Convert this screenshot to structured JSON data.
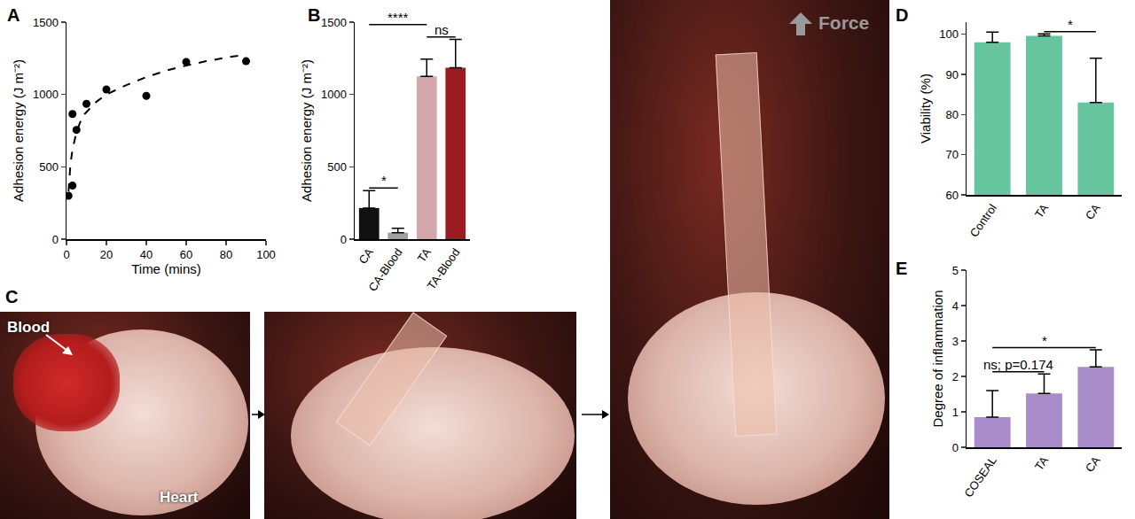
{
  "chart_data": [
    {
      "type": "scatter",
      "title": "A",
      "xlabel": "Time (mins)",
      "ylabel": "Adhesion energy (J m⁻²)",
      "xlim": [
        0,
        100
      ],
      "xticks": [
        0,
        20,
        40,
        60,
        80,
        100
      ],
      "ylim": [
        0,
        1500
      ],
      "yticks": [
        0,
        500,
        1000,
        1500
      ],
      "grid": false,
      "series": [
        {
          "type": "scatter",
          "marker": "circle",
          "color": "#000000",
          "x": [
            1,
            3,
            3,
            5,
            10,
            20,
            40,
            60,
            90
          ],
          "values": [
            300,
            370,
            865,
            755,
            935,
            1035,
            990,
            1225,
            1230
          ]
        },
        {
          "type": "line",
          "line_style": "dash",
          "color": "#000000",
          "x": [
            1,
            2,
            3,
            5,
            8,
            10,
            15,
            20,
            30,
            40,
            50,
            60,
            70,
            80,
            90
          ],
          "values": [
            330,
            520,
            620,
            740,
            850,
            880,
            950,
            1000,
            1065,
            1120,
            1165,
            1200,
            1230,
            1255,
            1275
          ]
        }
      ]
    },
    {
      "type": "bar",
      "title": "B",
      "ylabel": "Adhesion energy (J m⁻²)",
      "categories": [
        "CA",
        "CA-Blood",
        "TA",
        "TA-Blood"
      ],
      "values": [
        215,
        45,
        1125,
        1185
      ],
      "errors": [
        120,
        30,
        120,
        195
      ],
      "colors": [
        "#111111",
        "#a0a0a0",
        "#d4a7ac",
        "#9b1b22"
      ],
      "ylim": [
        0,
        1500
      ],
      "yticks": [
        0,
        500,
        1000,
        1500
      ],
      "grid": false,
      "significance": [
        {
          "from": "CA",
          "to": "CA-Blood",
          "text": "*"
        },
        {
          "from": "TA",
          "to": "TA-Blood",
          "text": "ns"
        },
        {
          "from": "CA",
          "to": "TA",
          "text": "****"
        }
      ]
    },
    {
      "type": "bar",
      "title": "D",
      "ylabel": "Viability (%)",
      "categories": [
        "Control",
        "TA",
        "CA"
      ],
      "values": [
        98,
        99.6,
        83
      ],
      "errors": [
        2.5,
        0.5,
        11
      ],
      "color": "#66c59e",
      "ylim": [
        60,
        103
      ],
      "yticks": [
        60,
        70,
        80,
        90,
        100
      ],
      "grid": false,
      "significance": [
        {
          "from": "TA",
          "to": "CA",
          "text": "*"
        }
      ]
    },
    {
      "type": "bar",
      "title": "E",
      "ylabel": "Degree of inflammation",
      "categories": [
        "COSEAL",
        "TA",
        "CA"
      ],
      "values": [
        0.85,
        1.52,
        2.27
      ],
      "errors": [
        0.75,
        0.55,
        0.48
      ],
      "color": "#a98cca",
      "ylim": [
        0,
        5
      ],
      "yticks": [
        0,
        1,
        2,
        3,
        4,
        5
      ],
      "grid": false,
      "significance": [
        {
          "from": "COSEAL",
          "to": "TA",
          "text": "ns; p=0.174"
        },
        {
          "from": "COSEAL",
          "to": "CA",
          "text": "*"
        }
      ]
    }
  ],
  "figure_c": {
    "title": "C",
    "photos": [
      {
        "labels": [
          "Blood",
          "Heart"
        ]
      },
      {
        "labels": []
      },
      {
        "labels": [
          "Force"
        ]
      }
    ]
  }
}
